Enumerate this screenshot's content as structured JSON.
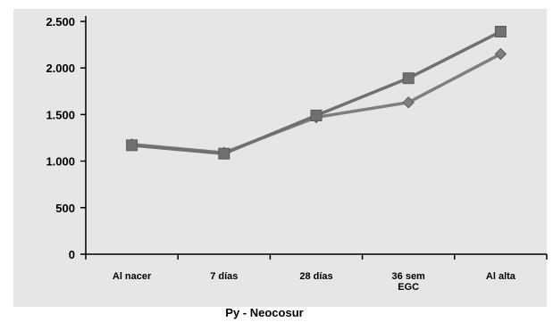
{
  "chart_data": {
    "type": "line",
    "title": "",
    "xlabel": "Py  -  Neocosur",
    "ylabel": "",
    "categories": [
      "Al nacer",
      "7 días",
      "28 días",
      "36 sem EGC",
      "Al alta"
    ],
    "category_label_lines": [
      [
        "Al nacer"
      ],
      [
        "7 días"
      ],
      [
        "28 días"
      ],
      [
        "36 sem",
        "EGC"
      ],
      [
        "Al alta"
      ]
    ],
    "ylim": [
      0,
      2500
    ],
    "y_ticks": [
      0,
      500,
      1000,
      1500,
      2000,
      2500
    ],
    "y_tick_labels": [
      "0",
      "500",
      "1.000",
      "1.500",
      "2.000",
      "2.500"
    ],
    "grid": false,
    "legend": "none",
    "series": [
      {
        "marker": "diamond",
        "color": "#7f7f7f",
        "values": [
          1180,
          1090,
          1470,
          1630,
          2150
        ]
      },
      {
        "marker": "square",
        "color": "#707070",
        "values": [
          1170,
          1080,
          1490,
          1890,
          2390
        ]
      }
    ],
    "colors": {
      "plot_background": "#e6e6e6",
      "axis": "#000000",
      "text": "#000000"
    }
  }
}
